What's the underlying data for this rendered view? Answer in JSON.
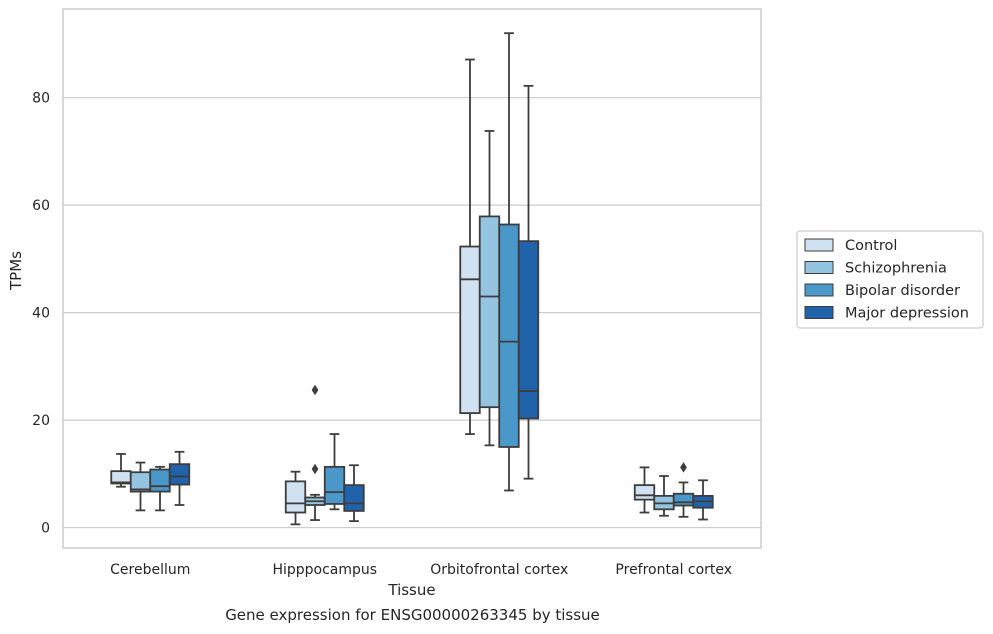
{
  "caption": "Gene expression for ENSG00000263345 by tissue",
  "chart_data": {
    "type": "box",
    "xlabel": "Tissue",
    "ylabel": "TPMs",
    "ylim": [
      -3.8,
      96.5
    ],
    "yticks": [
      0,
      20,
      40,
      60,
      80
    ],
    "grid": "horizontal",
    "legend_position": "right",
    "categories": [
      "Cerebellum",
      "Hipppocampus",
      "Orbitofrontal cortex",
      "Prefrontal cortex"
    ],
    "series": [
      {
        "name": "Control",
        "color": "#d0e1f2",
        "boxes": [
          {
            "whislo": 7.6,
            "q1": 8.2,
            "med": 8.4,
            "q3": 10.5,
            "whishi": 13.7,
            "fliers": []
          },
          {
            "whislo": 0.6,
            "q1": 2.8,
            "med": 4.5,
            "q3": 8.6,
            "whishi": 10.4,
            "fliers": []
          },
          {
            "whislo": 17.4,
            "q1": 21.3,
            "med": 46.2,
            "q3": 52.3,
            "whishi": 87.1,
            "fliers": []
          },
          {
            "whislo": 2.8,
            "q1": 5.2,
            "med": 6.0,
            "q3": 7.9,
            "whishi": 11.2,
            "fliers": []
          }
        ]
      },
      {
        "name": "Schizophrenia",
        "color": "#94c4df",
        "boxes": [
          {
            "whislo": 3.2,
            "q1": 6.7,
            "med": 7.1,
            "q3": 10.3,
            "whishi": 12.1,
            "fliers": []
          },
          {
            "whislo": 1.4,
            "q1": 4.2,
            "med": 4.9,
            "q3": 5.6,
            "whishi": 6.1,
            "fliers": [
              10.9,
              25.6
            ]
          },
          {
            "whislo": 15.3,
            "q1": 22.4,
            "med": 43.0,
            "q3": 57.9,
            "whishi": 73.8,
            "fliers": []
          },
          {
            "whislo": 2.2,
            "q1": 3.4,
            "med": 4.5,
            "q3": 5.9,
            "whishi": 9.6,
            "fliers": []
          }
        ]
      },
      {
        "name": "Bipolar disorder",
        "color": "#4a98c9",
        "boxes": [
          {
            "whislo": 3.2,
            "q1": 6.7,
            "med": 7.7,
            "q3": 10.8,
            "whishi": 11.3,
            "fliers": []
          },
          {
            "whislo": 3.4,
            "q1": 4.4,
            "med": 6.6,
            "q3": 11.3,
            "whishi": 17.4,
            "fliers": []
          },
          {
            "whislo": 6.9,
            "q1": 15.0,
            "med": 34.6,
            "q3": 56.4,
            "whishi": 92.0,
            "fliers": []
          },
          {
            "whislo": 2.0,
            "q1": 4.1,
            "med": 4.7,
            "q3": 6.3,
            "whishi": 8.4,
            "fliers": [
              11.2
            ]
          }
        ]
      },
      {
        "name": "Major depression",
        "color": "#2163aa",
        "boxes": [
          {
            "whislo": 4.2,
            "q1": 8.0,
            "med": 9.5,
            "q3": 11.8,
            "whishi": 14.1,
            "fliers": []
          },
          {
            "whislo": 1.2,
            "q1": 3.1,
            "med": 4.5,
            "q3": 7.9,
            "whishi": 11.6,
            "fliers": []
          },
          {
            "whislo": 9.1,
            "q1": 20.3,
            "med": 25.4,
            "q3": 53.3,
            "whishi": 82.2,
            "fliers": []
          },
          {
            "whislo": 1.5,
            "q1": 3.7,
            "med": 4.9,
            "q3": 5.9,
            "whishi": 8.8,
            "fliers": []
          }
        ]
      }
    ]
  }
}
